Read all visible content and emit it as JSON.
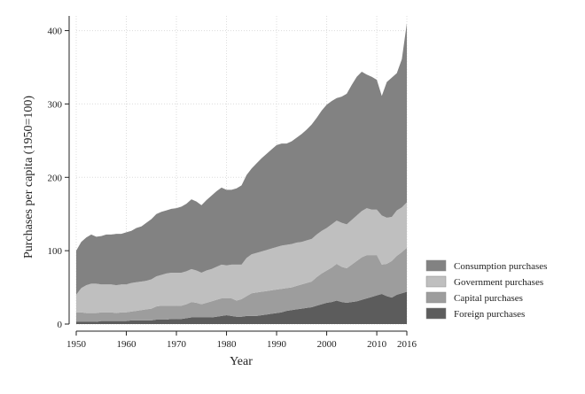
{
  "chart_data": {
    "type": "area",
    "stacked": true,
    "title": "",
    "xlabel": "Year",
    "ylabel": "Purchases per capita (1950=100)",
    "xlim": [
      1950,
      2016
    ],
    "ylim": [
      0,
      420
    ],
    "x_ticks": [
      1950,
      1960,
      1970,
      1980,
      1990,
      2000,
      2010,
      2016
    ],
    "y_ticks": [
      0,
      100,
      200,
      300,
      400
    ],
    "grid": true,
    "legend_position": "right",
    "x": [
      1950,
      1951,
      1952,
      1953,
      1954,
      1955,
      1956,
      1957,
      1958,
      1959,
      1960,
      1961,
      1962,
      1963,
      1964,
      1965,
      1966,
      1967,
      1968,
      1969,
      1970,
      1971,
      1972,
      1973,
      1974,
      1975,
      1976,
      1977,
      1978,
      1979,
      1980,
      1981,
      1982,
      1983,
      1984,
      1985,
      1986,
      1987,
      1988,
      1989,
      1990,
      1991,
      1992,
      1993,
      1994,
      1995,
      1996,
      1997,
      1998,
      1999,
      2000,
      2001,
      2002,
      2003,
      2004,
      2005,
      2006,
      2007,
      2008,
      2009,
      2010,
      2011,
      2012,
      2013,
      2014,
      2015,
      2016
    ],
    "series": [
      {
        "name": "Foreign purchases",
        "color": "#5c5c5c",
        "values": [
          3,
          3,
          3,
          3,
          3,
          4,
          4,
          4,
          4,
          4,
          4,
          5,
          5,
          5,
          5,
          5,
          6,
          6,
          6,
          7,
          7,
          7,
          8,
          9,
          9,
          9,
          9,
          9,
          10,
          11,
          12,
          11,
          10,
          10,
          11,
          11,
          11,
          12,
          13,
          14,
          15,
          16,
          18,
          19,
          20,
          21,
          22,
          23,
          25,
          27,
          29,
          30,
          32,
          30,
          29,
          30,
          31,
          33,
          35,
          37,
          39,
          41,
          38,
          36,
          40,
          42,
          44
        ]
      },
      {
        "name": "Capital purchases",
        "color": "#9d9d9d",
        "values": [
          13,
          13,
          12,
          12,
          12,
          12,
          12,
          12,
          11,
          12,
          12,
          12,
          13,
          14,
          15,
          16,
          18,
          19,
          19,
          18,
          18,
          18,
          19,
          21,
          20,
          18,
          20,
          22,
          23,
          24,
          23,
          24,
          22,
          24,
          27,
          31,
          32,
          32,
          32,
          32,
          32,
          32,
          31,
          31,
          32,
          33,
          34,
          35,
          39,
          42,
          44,
          47,
          50,
          48,
          47,
          51,
          55,
          58,
          59,
          57,
          55,
          40,
          44,
          50,
          53,
          56,
          60
        ]
      },
      {
        "name": "Government purchases",
        "color": "#bfbfbf",
        "values": [
          24,
          33,
          38,
          40,
          40,
          38,
          38,
          38,
          38,
          38,
          38,
          39,
          39,
          39,
          39,
          40,
          41,
          42,
          44,
          45,
          45,
          45,
          45,
          45,
          44,
          43,
          44,
          44,
          45,
          46,
          45,
          46,
          49,
          47,
          52,
          53,
          54,
          55,
          56,
          57,
          58,
          59,
          59,
          59,
          59,
          58,
          58,
          58,
          58,
          58,
          58,
          59,
          59,
          60,
          60,
          61,
          62,
          63,
          64,
          62,
          62,
          67,
          63,
          60,
          62,
          61,
          62
        ]
      },
      {
        "name": "Consumption purchases",
        "color": "#828282",
        "values": [
          60,
          63,
          65,
          67,
          64,
          66,
          68,
          68,
          70,
          69,
          71,
          71,
          74,
          75,
          79,
          82,
          85,
          86,
          86,
          87,
          88,
          90,
          92,
          95,
          94,
          92,
          96,
          100,
          103,
          105,
          103,
          102,
          104,
          108,
          113,
          117,
          122,
          127,
          131,
          135,
          139,
          139,
          138,
          140,
          143,
          147,
          151,
          156,
          159,
          164,
          168,
          168,
          167,
          172,
          178,
          184,
          189,
          190,
          182,
          181,
          177,
          163,
          185,
          190,
          187,
          202,
          244
        ]
      }
    ]
  }
}
